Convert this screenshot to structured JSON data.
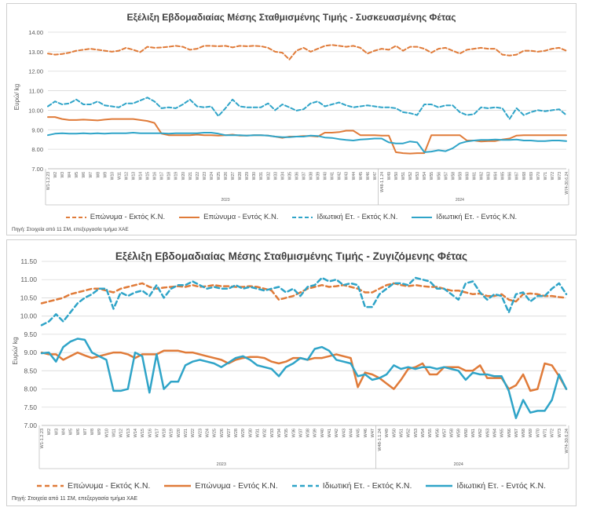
{
  "colors": {
    "orange": "#E07B39",
    "blue": "#2FA4C8",
    "grid": "#d9d9d9",
    "axis": "#595959"
  },
  "legend_labels": [
    "Επώνυμα - Εκτός Κ.Ν.",
    "Επώνυμα - Εντός Κ.Ν.",
    "Ιδιωτική Ετ. - Εκτός Κ.Ν.",
    "Ιδιωτική Ετ. - Εντός Κ.Ν."
  ],
  "chart_data": [
    {
      "type": "line",
      "title": "Εξέλιξη Εβδομαδιαίας Μέσης Σταθμισμένης Τιμής - Συσκευασμένης Φέτας",
      "ylabel": "Ευρώ/ kg",
      "xlabel": "",
      "source": "Πηγή: Στοιχεία από 11 ΣΜ, επεξεργασία τμήμα ΧΑΕ",
      "ylim": [
        7.0,
        14.0
      ],
      "yticks": [
        "7.00",
        "8.00",
        "9.00",
        "10.00",
        "11.00",
        "12.00",
        "13.00",
        "14.00"
      ],
      "year_labels": [
        {
          "label": "2023",
          "at": "W26"
        },
        {
          "label": "2024",
          "at": "W59"
        }
      ],
      "x": [
        "W1-1.2.23",
        "W2",
        "W3",
        "W4",
        "W5",
        "W6",
        "W7",
        "W8",
        "W9",
        "W10",
        "W11",
        "W12",
        "W13",
        "W14",
        "W15",
        "W16",
        "W17",
        "W18",
        "W19",
        "W20",
        "W21",
        "W22",
        "W23",
        "W24",
        "W25",
        "W26",
        "W27",
        "W28",
        "W29",
        "W30",
        "W31",
        "W32",
        "W33",
        "W34",
        "W35",
        "W36",
        "W37",
        "W38",
        "W39",
        "W40",
        "W41",
        "W42",
        "W43",
        "W44",
        "W45",
        "W46",
        "W47",
        "W48-1.1.24",
        "W49",
        "W50",
        "W51",
        "W52",
        "W53",
        "W54",
        "W55",
        "W56",
        "W57",
        "W58",
        "W59",
        "W60",
        "W61",
        "W62",
        "W63",
        "W64",
        "W65",
        "W66",
        "W67",
        "W68",
        "W69",
        "W70",
        "W71",
        "W72",
        "W73",
        "W74-30.6.24"
      ],
      "grid": true,
      "legend": "bottom",
      "series": [
        {
          "name": "Επώνυμα - Εκτός Κ.Ν.",
          "style": "dash",
          "color": "orange",
          "values": [
            12.9,
            12.85,
            12.88,
            12.95,
            13.05,
            13.1,
            13.15,
            13.1,
            13.05,
            13.0,
            13.05,
            13.2,
            13.1,
            12.98,
            13.25,
            13.2,
            13.22,
            13.25,
            13.3,
            13.25,
            13.1,
            13.15,
            13.3,
            13.3,
            13.28,
            13.3,
            13.22,
            13.3,
            13.28,
            13.3,
            13.28,
            13.2,
            13.0,
            12.95,
            12.6,
            13.05,
            13.2,
            13.0,
            13.15,
            13.3,
            13.35,
            13.3,
            13.25,
            13.3,
            13.2,
            12.9,
            13.05,
            13.15,
            13.1,
            13.3,
            13.05,
            13.25,
            13.25,
            13.15,
            12.95,
            13.15,
            13.2,
            13.05,
            12.9,
            13.1,
            13.15,
            13.2,
            13.15,
            13.15,
            12.85,
            12.8,
            12.85,
            13.05,
            13.05,
            13.0,
            13.05,
            13.15,
            13.2,
            13.05
          ]
        },
        {
          "name": "Επώνυμα - Εντός Κ.Ν.",
          "style": "solid",
          "color": "orange",
          "values": [
            9.65,
            9.65,
            9.55,
            9.5,
            9.5,
            9.52,
            9.5,
            9.48,
            9.52,
            9.55,
            9.55,
            9.55,
            9.55,
            9.5,
            9.45,
            9.35,
            8.8,
            8.72,
            8.72,
            8.72,
            8.72,
            8.75,
            8.72,
            8.72,
            8.7,
            8.72,
            8.75,
            8.7,
            8.7,
            8.72,
            8.72,
            8.7,
            8.65,
            8.58,
            8.65,
            8.65,
            8.68,
            8.68,
            8.65,
            8.85,
            8.85,
            8.88,
            8.95,
            8.95,
            8.72,
            8.72,
            8.72,
            8.7,
            8.7,
            7.85,
            7.8,
            7.78,
            7.8,
            7.8,
            8.72,
            8.72,
            8.72,
            8.72,
            8.72,
            8.45,
            8.45,
            8.4,
            8.42,
            8.42,
            8.5,
            8.55,
            8.7,
            8.72,
            8.72,
            8.72,
            8.72,
            8.72,
            8.72,
            8.72
          ]
        },
        {
          "name": "Ιδιωτική Ετ. - Εκτός Κ.Ν.",
          "style": "dash",
          "color": "blue",
          "values": [
            10.2,
            10.45,
            10.3,
            10.35,
            10.55,
            10.3,
            10.3,
            10.45,
            10.25,
            10.2,
            10.15,
            10.35,
            10.35,
            10.5,
            10.65,
            10.45,
            10.1,
            10.15,
            10.1,
            10.3,
            10.55,
            10.2,
            10.15,
            10.2,
            9.7,
            10.1,
            10.55,
            10.2,
            10.15,
            10.15,
            10.15,
            10.35,
            10.0,
            10.3,
            10.15,
            9.98,
            10.05,
            10.35,
            10.45,
            10.2,
            10.3,
            10.4,
            10.25,
            10.15,
            10.2,
            10.25,
            10.2,
            10.15,
            10.15,
            10.1,
            9.9,
            9.85,
            9.75,
            10.3,
            10.3,
            10.15,
            10.25,
            10.25,
            9.9,
            9.75,
            9.8,
            10.15,
            10.1,
            10.15,
            10.1,
            9.55,
            10.1,
            9.75,
            9.9,
            10.0,
            9.95,
            10.0,
            10.05,
            9.75
          ]
        },
        {
          "name": "Ιδιωτική Ετ. - Εντός Κ.Ν.",
          "style": "solid",
          "color": "blue",
          "values": [
            8.72,
            8.8,
            8.82,
            8.8,
            8.8,
            8.82,
            8.8,
            8.82,
            8.8,
            8.82,
            8.82,
            8.82,
            8.85,
            8.82,
            8.82,
            8.82,
            8.82,
            8.8,
            8.82,
            8.82,
            8.82,
            8.82,
            8.85,
            8.85,
            8.8,
            8.72,
            8.72,
            8.72,
            8.7,
            8.72,
            8.72,
            8.7,
            8.65,
            8.62,
            8.62,
            8.65,
            8.65,
            8.7,
            8.68,
            8.6,
            8.58,
            8.52,
            8.48,
            8.45,
            8.5,
            8.52,
            8.55,
            8.55,
            8.35,
            8.3,
            8.3,
            8.4,
            8.35,
            7.85,
            7.88,
            7.95,
            7.9,
            8.05,
            8.3,
            8.4,
            8.45,
            8.48,
            8.48,
            8.5,
            8.48,
            8.48,
            8.5,
            8.45,
            8.45,
            8.42,
            8.42,
            8.45,
            8.45,
            8.42
          ]
        }
      ]
    },
    {
      "type": "line",
      "title": "Εξέλιξη Εβδομαδιαίας Μέσης Σταθμισμένης Τιμής - Ζυγιζόμενης Φέτας",
      "ylabel": "Ευρώ/ kg",
      "xlabel": "",
      "source": "Πηγή: Στοιχεία από 11 ΣΜ, επεξεργασία τμήμα ΧΑΕ",
      "ylim": [
        7.0,
        11.5
      ],
      "yticks": [
        "7.00",
        "7.50",
        "8.00",
        "8.50",
        "9.00",
        "9.50",
        "10.00",
        "10.50",
        "11.00",
        "11.50"
      ],
      "year_labels": [
        {
          "label": "2023",
          "at": "W26"
        },
        {
          "label": "2024",
          "at": "W59"
        }
      ],
      "x": [
        "W1-1.2.23",
        "W2",
        "W3",
        "W4",
        "W5",
        "W6",
        "W7",
        "W8",
        "W9",
        "W10",
        "W11",
        "W12",
        "W13",
        "W14",
        "W15",
        "W16",
        "W17",
        "W18",
        "W19",
        "W20",
        "W21",
        "W22",
        "W23",
        "W24",
        "W25",
        "W26",
        "W27",
        "W28",
        "W29",
        "W30",
        "W31",
        "W32",
        "W33",
        "W34",
        "W35",
        "W36",
        "W37",
        "W38",
        "W39",
        "W40",
        "W41",
        "W42",
        "W43",
        "W44",
        "W45",
        "W46",
        "W47",
        "W48-1.1.24",
        "W49",
        "W50",
        "W51",
        "W52",
        "W53",
        "W54",
        "W55",
        "W56",
        "W57",
        "W58",
        "W59",
        "W60",
        "W61",
        "W62",
        "W63",
        "W64",
        "W65",
        "W66",
        "W67",
        "W68",
        "W69",
        "W70",
        "W71",
        "W72",
        "W73",
        "W74-30.6.24"
      ],
      "grid": true,
      "legend": "bottom",
      "series": [
        {
          "name": "Επώνυμα - Εκτός Κ.Ν.",
          "style": "dash",
          "color": "orange",
          "values": [
            10.35,
            10.4,
            10.45,
            10.5,
            10.6,
            10.65,
            10.7,
            10.75,
            10.75,
            10.7,
            10.65,
            10.75,
            10.8,
            10.85,
            10.9,
            10.8,
            10.75,
            10.78,
            10.8,
            10.82,
            10.8,
            10.85,
            10.8,
            10.82,
            10.85,
            10.82,
            10.82,
            10.8,
            10.8,
            10.82,
            10.8,
            10.75,
            10.7,
            10.45,
            10.5,
            10.55,
            10.65,
            10.75,
            10.8,
            10.85,
            10.8,
            10.82,
            10.85,
            10.8,
            10.75,
            10.65,
            10.65,
            10.75,
            10.85,
            10.9,
            10.85,
            10.82,
            10.85,
            10.82,
            10.8,
            10.8,
            10.75,
            10.7,
            10.7,
            10.65,
            10.6,
            10.62,
            10.55,
            10.55,
            10.6,
            10.45,
            10.4,
            10.6,
            10.62,
            10.6,
            10.55,
            10.55,
            10.52,
            10.5
          ]
        },
        {
          "name": "Επώνυμα - Εντός Κ.Ν.",
          "style": "solid",
          "color": "orange",
          "values": [
            9.0,
            8.95,
            8.95,
            8.8,
            8.9,
            9.0,
            8.92,
            8.85,
            8.9,
            8.95,
            9.0,
            9.0,
            8.95,
            8.85,
            8.95,
            8.95,
            8.95,
            9.05,
            9.05,
            9.05,
            9.0,
            9.0,
            8.95,
            8.9,
            8.85,
            8.8,
            8.7,
            8.8,
            8.85,
            8.88,
            8.88,
            8.85,
            8.75,
            8.7,
            8.75,
            8.85,
            8.85,
            8.8,
            8.85,
            8.85,
            8.9,
            8.95,
            8.9,
            8.85,
            8.05,
            8.45,
            8.4,
            8.3,
            8.15,
            8.0,
            8.25,
            8.55,
            8.6,
            8.7,
            8.4,
            8.4,
            8.6,
            8.6,
            8.6,
            8.5,
            8.5,
            8.65,
            8.3,
            8.3,
            8.3,
            8.0,
            8.1,
            8.4,
            7.95,
            8.0,
            8.7,
            8.65,
            8.35,
            8.0
          ]
        },
        {
          "name": "Ιδιωτική Ετ. - Εκτός Κ.Ν.",
          "style": "dash",
          "color": "blue",
          "values": [
            9.75,
            9.85,
            10.05,
            9.85,
            10.1,
            10.35,
            10.5,
            10.6,
            10.75,
            10.75,
            10.2,
            10.65,
            10.55,
            10.65,
            10.7,
            10.55,
            10.85,
            10.5,
            10.75,
            10.85,
            10.85,
            10.95,
            10.85,
            10.75,
            10.8,
            10.75,
            10.75,
            10.85,
            10.75,
            10.8,
            10.75,
            10.7,
            10.75,
            10.8,
            10.65,
            10.75,
            10.55,
            10.8,
            10.85,
            11.05,
            10.95,
            11.0,
            10.85,
            10.9,
            10.85,
            10.25,
            10.25,
            10.6,
            10.75,
            10.9,
            10.9,
            10.85,
            11.05,
            11.0,
            10.95,
            10.75,
            10.75,
            10.6,
            10.45,
            10.9,
            10.95,
            10.65,
            10.45,
            10.6,
            10.55,
            10.1,
            10.6,
            10.65,
            10.4,
            10.55,
            10.55,
            10.75,
            10.9,
            10.6
          ]
        },
        {
          "name": "Ιδιωτική Ετ. - Εντός Κ.Ν.",
          "style": "solid",
          "color": "blue",
          "values": [
            8.98,
            9.0,
            8.75,
            9.15,
            9.3,
            9.38,
            9.35,
            9.0,
            8.9,
            8.8,
            7.95,
            7.95,
            8.0,
            9.0,
            8.9,
            7.9,
            8.95,
            8.0,
            8.2,
            8.2,
            8.65,
            8.75,
            8.8,
            8.75,
            8.7,
            8.6,
            8.72,
            8.85,
            8.9,
            8.8,
            8.65,
            8.6,
            8.55,
            8.35,
            8.6,
            8.7,
            8.85,
            8.8,
            9.1,
            9.15,
            9.05,
            8.8,
            8.75,
            8.7,
            8.35,
            8.4,
            8.25,
            8.3,
            8.4,
            8.65,
            8.55,
            8.6,
            8.55,
            8.6,
            8.6,
            8.55,
            8.6,
            8.55,
            8.5,
            8.25,
            8.45,
            8.4,
            8.4,
            8.35,
            8.35,
            7.95,
            7.2,
            7.7,
            7.35,
            7.4,
            7.4,
            7.7,
            8.4,
            8.0
          ]
        }
      ]
    }
  ]
}
